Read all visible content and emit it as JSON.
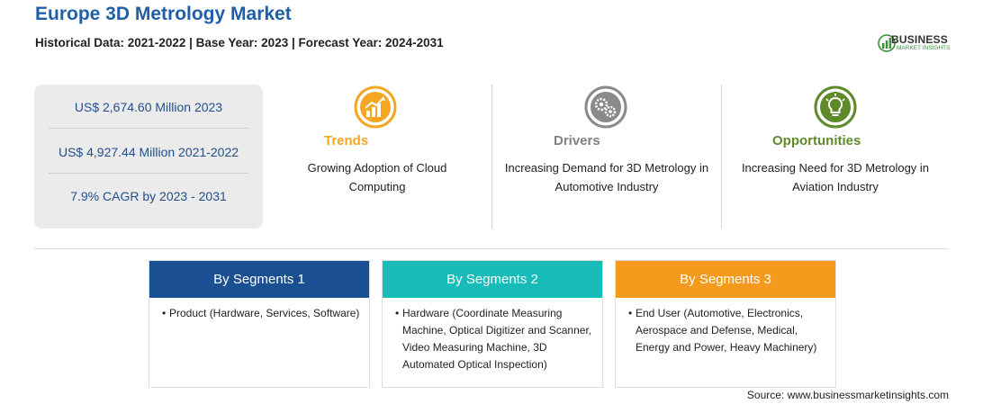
{
  "header": {
    "title": "Europe 3D Metrology Market",
    "subtitle": "Historical Data: 2021-2022 | Base Year: 2023 | Forecast Year: 2024-2031"
  },
  "logo": {
    "word": "BUSINESS",
    "sub": "MARKET INSIGHTS",
    "icon": "bar-chart-logo-icon"
  },
  "stats": [
    "US$ 2,674.60 Million 2023",
    "US$ 4,927.44 Million 2021-2022",
    "7.9% CAGR by 2023 - 2031"
  ],
  "columns": [
    {
      "heading": "Trends",
      "description": "Growing Adoption of Cloud Computing",
      "icon": "trend-chart-icon",
      "color": "#f5a623"
    },
    {
      "heading": "Drivers",
      "description": "Increasing Demand for 3D Metrology in Automotive Industry",
      "icon": "gears-icon",
      "color": "#808080"
    },
    {
      "heading": "Opportunities",
      "description": "Increasing Need for 3D Metrology in Aviation Industry",
      "icon": "lightbulb-icon",
      "color": "#5f8a2a"
    }
  ],
  "segments": [
    {
      "label": "By Segments 1",
      "color": "#1b4f93",
      "bullet": "•",
      "text": "Product (Hardware, Services, Software)"
    },
    {
      "label": "By Segments 2",
      "color": "#17bcb9",
      "bullet": "•",
      "text": "Hardware (Coordinate Measuring Machine, Optical Digitizer and Scanner, Video Measuring Machine, 3D Automated Optical Inspection)"
    },
    {
      "label": "By Segments 3",
      "color": "#f59a1c",
      "bullet": "•",
      "text": "End User (Automotive, Electronics, Aerospace and Defense, Medical, Energy and Power, Heavy Machinery)"
    }
  ],
  "source": "Source: www.businessmarketinsights.com"
}
